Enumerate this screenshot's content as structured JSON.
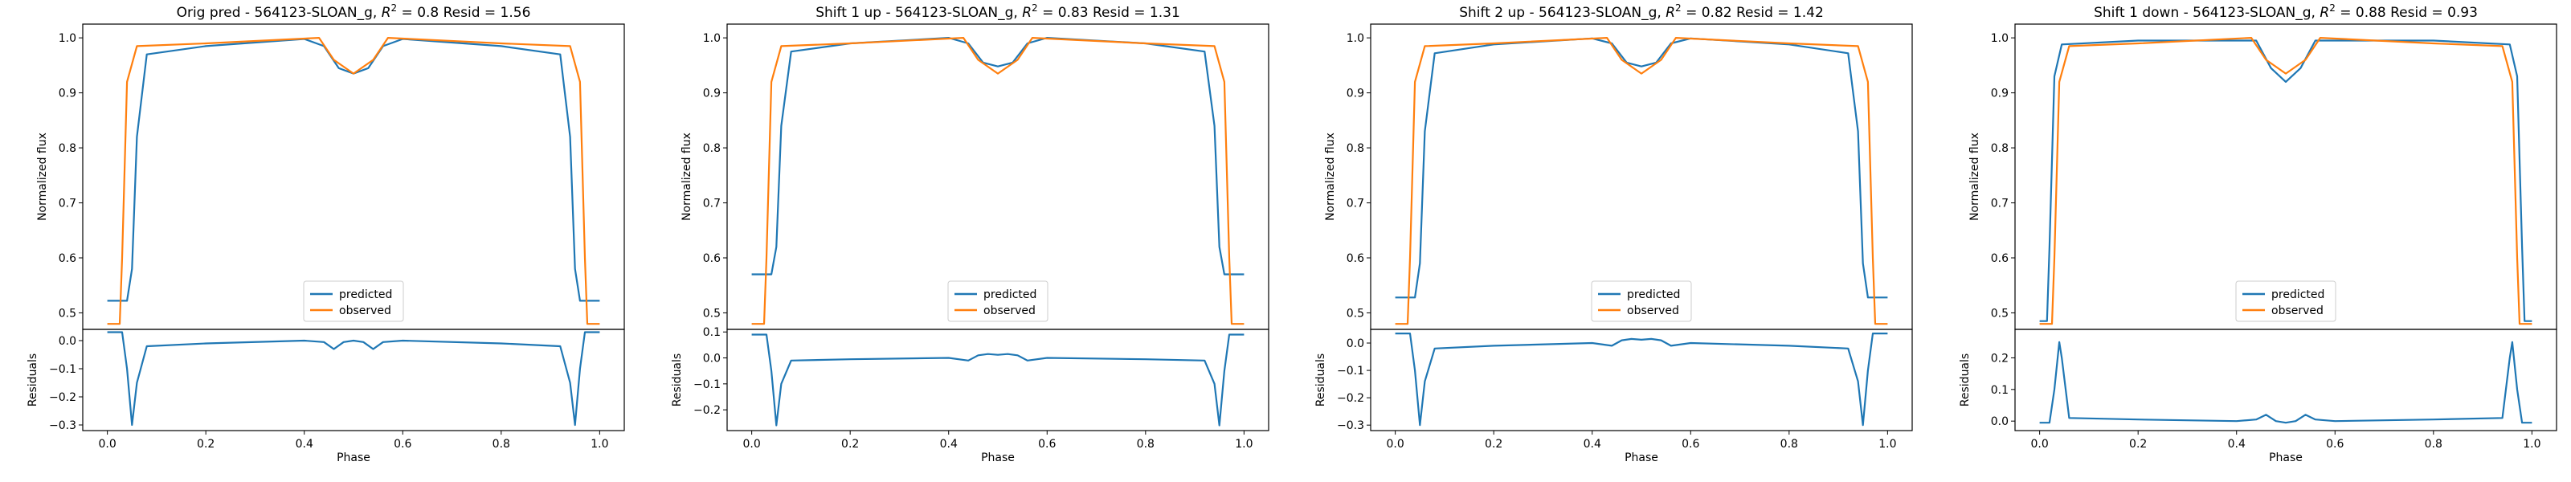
{
  "chart_data": [
    {
      "type": "line",
      "title": "Orig pred - 564123-SLOAN_g, R² = 0.8 Resid = 1.56",
      "title_parts": {
        "prefix": "Orig pred - 564123-SLOAN_g, ",
        "r2_label": "R",
        "r2_sup": "2",
        "suffix": " = 0.8 Resid = 1.56"
      },
      "xlabel": "Phase",
      "ylabel_top": "Normalized flux",
      "ylabel_bottom": "Residuals",
      "xlim": [
        -0.05,
        1.05
      ],
      "ylim_top": [
        0.47,
        1.025
      ],
      "ylim_bottom": [
        -0.32,
        0.04
      ],
      "xticks": [
        "0.0",
        "0.2",
        "0.4",
        "0.6",
        "0.8",
        "1.0"
      ],
      "yticks_top": [
        "0.5",
        "0.6",
        "0.7",
        "0.8",
        "0.9",
        "1.0"
      ],
      "yticks_bottom": [
        "-0.3",
        "-0.2",
        "-0.1",
        "0.0"
      ],
      "legend": {
        "position": "lower center",
        "entries": [
          "predicted",
          "observed"
        ]
      },
      "series": [
        {
          "name": "predicted",
          "color": "#1f77b4",
          "x": [
            0.0,
            0.04,
            0.05,
            0.06,
            0.08,
            0.2,
            0.4,
            0.44,
            0.47,
            0.5,
            0.53,
            0.56,
            0.6,
            0.8,
            0.92,
            0.94,
            0.95,
            0.96,
            1.0
          ],
          "y": [
            0.522,
            0.522,
            0.58,
            0.82,
            0.97,
            0.985,
            0.998,
            0.985,
            0.945,
            0.935,
            0.945,
            0.985,
            0.998,
            0.985,
            0.97,
            0.82,
            0.58,
            0.522,
            0.522
          ]
        },
        {
          "name": "observed",
          "color": "#ff7f0e",
          "x": [
            0.0,
            0.025,
            0.03,
            0.04,
            0.06,
            0.2,
            0.43,
            0.46,
            0.5,
            0.54,
            0.57,
            0.8,
            0.94,
            0.96,
            0.97,
            0.975,
            1.0
          ],
          "y": [
            0.48,
            0.48,
            0.6,
            0.92,
            0.985,
            0.99,
            1.0,
            0.96,
            0.935,
            0.96,
            1.0,
            0.99,
            0.985,
            0.92,
            0.6,
            0.48,
            0.48
          ]
        },
        {
          "name": "residuals",
          "color": "#1f77b4",
          "panel": "bottom",
          "x": [
            0.0,
            0.03,
            0.04,
            0.05,
            0.06,
            0.08,
            0.2,
            0.4,
            0.44,
            0.46,
            0.48,
            0.5,
            0.52,
            0.54,
            0.56,
            0.6,
            0.8,
            0.92,
            0.94,
            0.95,
            0.96,
            0.97,
            1.0
          ],
          "y": [
            0.03,
            0.03,
            -0.1,
            -0.3,
            -0.15,
            -0.02,
            -0.01,
            0.0,
            -0.005,
            -0.03,
            -0.005,
            0.0,
            -0.005,
            -0.03,
            -0.005,
            0.0,
            -0.01,
            -0.02,
            -0.15,
            -0.3,
            -0.1,
            0.03,
            0.03
          ]
        }
      ]
    },
    {
      "type": "line",
      "title": "Shift 1 up - 564123-SLOAN_g, R² = 0.83 Resid = 1.31",
      "title_parts": {
        "prefix": "Shift 1 up - 564123-SLOAN_g, ",
        "r2_label": "R",
        "r2_sup": "2",
        "suffix": " = 0.83 Resid = 1.31"
      },
      "xlabel": "Phase",
      "ylabel_top": "Normalized flux",
      "ylabel_bottom": "Residuals",
      "xlim": [
        -0.05,
        1.05
      ],
      "ylim_top": [
        0.47,
        1.025
      ],
      "ylim_bottom": [
        -0.28,
        0.11
      ],
      "xticks": [
        "0.0",
        "0.2",
        "0.4",
        "0.6",
        "0.8",
        "1.0"
      ],
      "yticks_top": [
        "0.5",
        "0.6",
        "0.7",
        "0.8",
        "0.9",
        "1.0"
      ],
      "yticks_bottom": [
        "-0.2",
        "-0.1",
        "0.0",
        "0.1"
      ],
      "legend": {
        "position": "lower center",
        "entries": [
          "predicted",
          "observed"
        ]
      },
      "series": [
        {
          "name": "predicted",
          "color": "#1f77b4",
          "x": [
            0.0,
            0.04,
            0.05,
            0.06,
            0.08,
            0.2,
            0.4,
            0.44,
            0.47,
            0.5,
            0.53,
            0.56,
            0.6,
            0.8,
            0.92,
            0.94,
            0.95,
            0.96,
            1.0
          ],
          "y": [
            0.57,
            0.57,
            0.62,
            0.84,
            0.975,
            0.99,
            1.0,
            0.99,
            0.955,
            0.948,
            0.955,
            0.99,
            1.0,
            0.99,
            0.975,
            0.84,
            0.62,
            0.57,
            0.57
          ]
        },
        {
          "name": "observed",
          "color": "#ff7f0e",
          "x": [
            0.0,
            0.025,
            0.03,
            0.04,
            0.06,
            0.2,
            0.43,
            0.46,
            0.5,
            0.54,
            0.57,
            0.8,
            0.94,
            0.96,
            0.97,
            0.975,
            1.0
          ],
          "y": [
            0.48,
            0.48,
            0.6,
            0.92,
            0.985,
            0.99,
            1.0,
            0.96,
            0.935,
            0.96,
            1.0,
            0.99,
            0.985,
            0.92,
            0.6,
            0.48,
            0.48
          ]
        },
        {
          "name": "residuals",
          "color": "#1f77b4",
          "panel": "bottom",
          "x": [
            0.0,
            0.03,
            0.04,
            0.05,
            0.06,
            0.08,
            0.2,
            0.4,
            0.44,
            0.46,
            0.48,
            0.5,
            0.52,
            0.54,
            0.56,
            0.6,
            0.8,
            0.92,
            0.94,
            0.95,
            0.96,
            0.97,
            1.0
          ],
          "y": [
            0.09,
            0.09,
            -0.05,
            -0.26,
            -0.1,
            -0.01,
            -0.005,
            0.0,
            -0.01,
            0.01,
            0.015,
            0.012,
            0.015,
            0.01,
            -0.01,
            0.0,
            -0.005,
            -0.01,
            -0.1,
            -0.26,
            -0.05,
            0.09,
            0.09
          ]
        }
      ]
    },
    {
      "type": "line",
      "title": "Shift 2 up - 564123-SLOAN_g, R² = 0.82 Resid = 1.42",
      "title_parts": {
        "prefix": "Shift 2 up - 564123-SLOAN_g, ",
        "r2_label": "R",
        "r2_sup": "2",
        "suffix": " = 0.82 Resid = 1.42"
      },
      "xlabel": "Phase",
      "ylabel_top": "Normalized flux",
      "ylabel_bottom": "Residuals",
      "xlim": [
        -0.05,
        1.05
      ],
      "ylim_top": [
        0.47,
        1.025
      ],
      "ylim_bottom": [
        -0.32,
        0.05
      ],
      "xticks": [
        "0.0",
        "0.2",
        "0.4",
        "0.6",
        "0.8",
        "1.0"
      ],
      "yticks_top": [
        "0.5",
        "0.6",
        "0.7",
        "0.8",
        "0.9",
        "1.0"
      ],
      "yticks_bottom": [
        "-0.3",
        "-0.2",
        "-0.1",
        "0.0"
      ],
      "legend": {
        "position": "lower center",
        "entries": [
          "predicted",
          "observed"
        ]
      },
      "series": [
        {
          "name": "predicted",
          "color": "#1f77b4",
          "x": [
            0.0,
            0.04,
            0.05,
            0.06,
            0.08,
            0.2,
            0.4,
            0.44,
            0.47,
            0.5,
            0.53,
            0.56,
            0.6,
            0.8,
            0.92,
            0.94,
            0.95,
            0.96,
            1.0
          ],
          "y": [
            0.528,
            0.528,
            0.59,
            0.83,
            0.972,
            0.988,
            0.999,
            0.99,
            0.955,
            0.948,
            0.955,
            0.99,
            0.999,
            0.988,
            0.972,
            0.83,
            0.59,
            0.528,
            0.528
          ]
        },
        {
          "name": "observed",
          "color": "#ff7f0e",
          "x": [
            0.0,
            0.025,
            0.03,
            0.04,
            0.06,
            0.2,
            0.43,
            0.46,
            0.5,
            0.54,
            0.57,
            0.8,
            0.94,
            0.96,
            0.97,
            0.975,
            1.0
          ],
          "y": [
            0.48,
            0.48,
            0.6,
            0.92,
            0.985,
            0.99,
            1.0,
            0.96,
            0.935,
            0.96,
            1.0,
            0.99,
            0.985,
            0.92,
            0.6,
            0.48,
            0.48
          ]
        },
        {
          "name": "residuals",
          "color": "#1f77b4",
          "panel": "bottom",
          "x": [
            0.0,
            0.03,
            0.04,
            0.05,
            0.06,
            0.08,
            0.2,
            0.4,
            0.44,
            0.46,
            0.48,
            0.5,
            0.52,
            0.54,
            0.56,
            0.6,
            0.8,
            0.92,
            0.94,
            0.95,
            0.96,
            0.97,
            1.0
          ],
          "y": [
            0.035,
            0.035,
            -0.1,
            -0.3,
            -0.14,
            -0.02,
            -0.01,
            0.0,
            -0.01,
            0.01,
            0.015,
            0.012,
            0.015,
            0.01,
            -0.01,
            0.0,
            -0.01,
            -0.02,
            -0.14,
            -0.3,
            -0.1,
            0.035,
            0.035
          ]
        }
      ]
    },
    {
      "type": "line",
      "title": "Shift 1 down - 564123-SLOAN_g, R² = 0.88 Resid = 0.93",
      "title_parts": {
        "prefix": "Shift 1 down - 564123-SLOAN_g, ",
        "r2_label": "R",
        "r2_sup": "2",
        "suffix": " = 0.88 Resid = 0.93"
      },
      "xlabel": "Phase",
      "ylabel_top": "Normalized flux",
      "ylabel_bottom": "Residuals",
      "xlim": [
        -0.05,
        1.05
      ],
      "ylim_top": [
        0.47,
        1.025
      ],
      "ylim_bottom": [
        -0.03,
        0.29
      ],
      "xticks": [
        "0.0",
        "0.2",
        "0.4",
        "0.6",
        "0.8",
        "1.0"
      ],
      "yticks_top": [
        "0.5",
        "0.6",
        "0.7",
        "0.8",
        "0.9",
        "1.0"
      ],
      "yticks_bottom": [
        "0.0",
        "0.1",
        "0.2"
      ],
      "legend": {
        "position": "lower center",
        "entries": [
          "predicted",
          "observed"
        ]
      },
      "series": [
        {
          "name": "predicted",
          "color": "#1f77b4",
          "x": [
            0.0,
            0.015,
            0.02,
            0.03,
            0.045,
            0.2,
            0.44,
            0.47,
            0.5,
            0.53,
            0.56,
            0.8,
            0.955,
            0.97,
            0.98,
            0.985,
            1.0
          ],
          "y": [
            0.485,
            0.485,
            0.62,
            0.93,
            0.988,
            0.995,
            0.995,
            0.945,
            0.92,
            0.945,
            0.995,
            0.995,
            0.988,
            0.93,
            0.62,
            0.485,
            0.485
          ]
        },
        {
          "name": "observed",
          "color": "#ff7f0e",
          "x": [
            0.0,
            0.025,
            0.03,
            0.04,
            0.06,
            0.2,
            0.43,
            0.46,
            0.5,
            0.54,
            0.57,
            0.8,
            0.94,
            0.96,
            0.97,
            0.975,
            1.0
          ],
          "y": [
            0.48,
            0.48,
            0.6,
            0.92,
            0.985,
            0.99,
            1.0,
            0.96,
            0.935,
            0.96,
            1.0,
            0.99,
            0.985,
            0.92,
            0.6,
            0.48,
            0.48
          ]
        },
        {
          "name": "residuals",
          "color": "#1f77b4",
          "panel": "bottom",
          "x": [
            0.0,
            0.02,
            0.03,
            0.04,
            0.045,
            0.06,
            0.2,
            0.4,
            0.44,
            0.46,
            0.48,
            0.5,
            0.52,
            0.54,
            0.56,
            0.6,
            0.8,
            0.94,
            0.955,
            0.96,
            0.97,
            0.98,
            1.0
          ],
          "y": [
            -0.005,
            -0.005,
            0.1,
            0.25,
            0.2,
            0.01,
            0.005,
            0.0,
            0.005,
            0.02,
            0.0,
            -0.005,
            0.0,
            0.02,
            0.005,
            0.0,
            0.005,
            0.01,
            0.2,
            0.25,
            0.1,
            -0.005,
            -0.005
          ]
        }
      ]
    }
  ]
}
